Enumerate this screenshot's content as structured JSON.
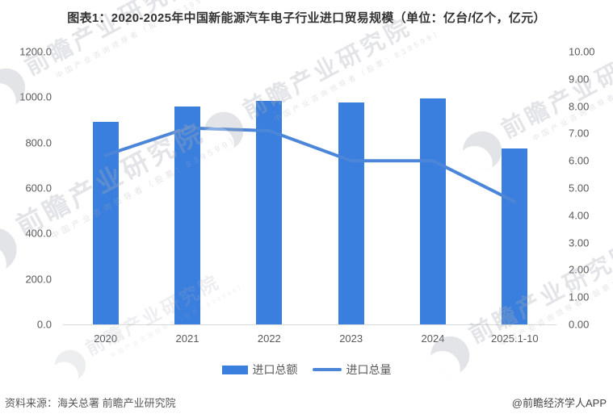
{
  "title": "图表1：2020-2025年中国新能源汽车电子行业进口贸易规模（单位：亿台/亿个，亿元）",
  "chart_data": {
    "type": "bar",
    "combo": "bar+line, dual axis",
    "categories": [
      "2020",
      "2021",
      "2022",
      "2023",
      "2024",
      "2025.1-10"
    ],
    "series": [
      {
        "name": "进口总额",
        "type": "bar",
        "axis": "left",
        "unit": "亿元",
        "values": [
          890,
          960,
          985,
          975,
          995,
          775
        ]
      },
      {
        "name": "进口总量",
        "type": "line",
        "axis": "right",
        "unit": "亿台/亿个",
        "values": [
          6.2,
          7.2,
          7.1,
          6.0,
          6.0,
          4.5
        ]
      }
    ],
    "left_axis": {
      "min": 0,
      "max": 1200,
      "step": 200,
      "ticks": [
        "1200.0",
        "1000.0",
        "800.0",
        "600.0",
        "400.0",
        "200.0",
        "0.0"
      ]
    },
    "right_axis": {
      "min": 0,
      "max": 10,
      "step": 1,
      "ticks": [
        "10.00",
        "9.00",
        "8.00",
        "7.00",
        "6.00",
        "5.00",
        "4.00",
        "3.00",
        "2.00",
        "1.00",
        "0.00"
      ]
    },
    "grid": false,
    "legend_position": "bottom"
  },
  "legend": {
    "items": [
      {
        "label": "进口总额",
        "swatch": "bar"
      },
      {
        "label": "进口总量",
        "swatch": "line"
      }
    ]
  },
  "watermark": {
    "text": "前瞻产业研究院",
    "subtext": "中国产业咨询领导者（股票：839599）"
  },
  "footer": {
    "source": "资料来源：海关总署  前瞻产业研究院",
    "credit": "@前瞻经济学人APP"
  },
  "colors": {
    "bar": "#3A7EDE",
    "line": "#4C86D8",
    "title-text": "#333333",
    "axis-text": "#595959",
    "axis-line": "#D9D9D9",
    "wm": "#A7ADB8"
  }
}
